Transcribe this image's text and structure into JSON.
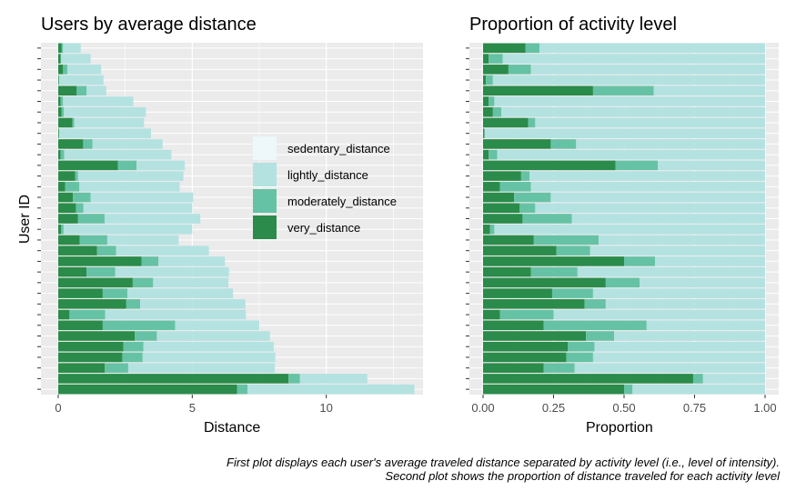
{
  "colors": {
    "sedentary_distance": "#eef7f9",
    "lightly_distance": "#b3e2e1",
    "moderately_distance": "#66c2a4",
    "very_distance": "#2a8b4a",
    "panel_bg": "#ebebeb",
    "grid": "#ffffff"
  },
  "legend": {
    "items": [
      "sedentary_distance",
      "lightly_distance",
      "moderately_distance",
      "very_distance"
    ]
  },
  "caption": {
    "line1": "First plot displays each user's average traveled distance separated by activity level (i.e., level of intensity).",
    "line2": "Second plot shows the proportion of distance traveled for each activity level"
  },
  "chart_data": [
    {
      "type": "bar",
      "orientation": "horizontal",
      "stacked": true,
      "title": "Users by average distance",
      "xlabel": "Distance",
      "ylabel": "User ID",
      "xlim": [
        0,
        13.5
      ],
      "xticks": [
        "0",
        "5",
        "10"
      ],
      "xtick_values": [
        0,
        5,
        10
      ],
      "series_order": [
        "very_distance",
        "moderately_distance",
        "lightly_distance",
        "sedentary_distance"
      ],
      "rows": [
        {
          "very": 0.13,
          "moderate": 0.05,
          "light": 0.66,
          "sedentary": 0.0
        },
        {
          "very": 0.09,
          "moderate": 0.02,
          "light": 1.1,
          "sedentary": 0.0
        },
        {
          "very": 0.18,
          "moderate": 0.16,
          "light": 1.26,
          "sedentary": 0.0
        },
        {
          "very": 0.02,
          "moderate": 0.02,
          "light": 1.65,
          "sedentary": 0.0
        },
        {
          "very": 0.69,
          "moderate": 0.37,
          "light": 0.73,
          "sedentary": 0.0
        },
        {
          "very": 0.09,
          "moderate": 0.09,
          "light": 2.62,
          "sedentary": 0.0
        },
        {
          "very": 0.12,
          "moderate": 0.09,
          "light": 3.06,
          "sedentary": 0.0
        },
        {
          "very": 0.53,
          "moderate": 0.07,
          "light": 2.6,
          "sedentary": 0.0
        },
        {
          "very": 0.03,
          "moderate": 0.0,
          "light": 3.43,
          "sedentary": 0.0
        },
        {
          "very": 0.93,
          "moderate": 0.35,
          "light": 2.61,
          "sedentary": 0.0
        },
        {
          "very": 0.09,
          "moderate": 0.13,
          "light": 4.0,
          "sedentary": 0.0
        },
        {
          "very": 2.23,
          "moderate": 0.69,
          "light": 1.8,
          "sedentary": 0.0
        },
        {
          "very": 0.63,
          "moderate": 0.11,
          "light": 3.93,
          "sedentary": 0.0
        },
        {
          "very": 0.26,
          "moderate": 0.53,
          "light": 3.74,
          "sedentary": 0.0
        },
        {
          "very": 0.55,
          "moderate": 0.66,
          "light": 3.82,
          "sedentary": 0.0
        },
        {
          "very": 0.66,
          "moderate": 0.28,
          "light": 4.06,
          "sedentary": 0.0
        },
        {
          "very": 0.74,
          "moderate": 0.99,
          "light": 3.57,
          "sedentary": 0.0
        },
        {
          "very": 0.11,
          "moderate": 0.09,
          "light": 4.8,
          "sedentary": 0.0
        },
        {
          "very": 0.8,
          "moderate": 1.03,
          "light": 2.66,
          "sedentary": 0.0
        },
        {
          "very": 1.45,
          "moderate": 0.71,
          "light": 3.46,
          "sedentary": 0.0
        },
        {
          "very": 3.11,
          "moderate": 0.63,
          "light": 2.48,
          "sedentary": 0.0
        },
        {
          "very": 1.06,
          "moderate": 1.07,
          "light": 4.24,
          "sedentary": 0.0
        },
        {
          "very": 2.78,
          "moderate": 0.76,
          "light": 2.81,
          "sedentary": 0.0
        },
        {
          "very": 1.66,
          "moderate": 0.92,
          "light": 3.94,
          "sedentary": 0.0
        },
        {
          "very": 2.54,
          "moderate": 0.52,
          "light": 3.92,
          "sedentary": 0.0
        },
        {
          "very": 0.42,
          "moderate": 1.33,
          "light": 5.25,
          "sedentary": 0.0
        },
        {
          "very": 1.66,
          "moderate": 2.7,
          "light": 3.14,
          "sedentary": 0.0
        },
        {
          "very": 2.86,
          "moderate": 0.82,
          "light": 4.22,
          "sedentary": 0.0
        },
        {
          "very": 2.43,
          "moderate": 0.75,
          "light": 4.86,
          "sedentary": 0.0
        },
        {
          "very": 2.39,
          "moderate": 0.76,
          "light": 4.95,
          "sedentary": 0.0
        },
        {
          "very": 1.74,
          "moderate": 0.87,
          "light": 5.47,
          "sedentary": 0.0
        },
        {
          "very": 8.59,
          "moderate": 0.43,
          "light": 2.51,
          "sedentary": 0.0
        },
        {
          "very": 6.67,
          "moderate": 0.39,
          "light": 6.23,
          "sedentary": 0.0
        }
      ]
    },
    {
      "type": "bar",
      "orientation": "horizontal",
      "stacked": true,
      "title": "Proportion of activity level",
      "xlabel": "Proportion",
      "ylabel": "",
      "xlim": [
        0,
        1
      ],
      "xticks": [
        "0.00",
        "0.25",
        "0.50",
        "0.75",
        "1.00"
      ],
      "xtick_values": [
        0,
        0.25,
        0.5,
        0.75,
        1.0
      ],
      "rows": [
        {
          "very": 0.15,
          "moderate": 0.05,
          "light": 0.8,
          "sedentary": 0.0
        },
        {
          "very": 0.02,
          "moderate": 0.05,
          "light": 0.93,
          "sedentary": 0.0
        },
        {
          "very": 0.09,
          "moderate": 0.08,
          "light": 0.83,
          "sedentary": 0.0
        },
        {
          "very": 0.01,
          "moderate": 0.025,
          "light": 0.965,
          "sedentary": 0.0
        },
        {
          "very": 0.39,
          "moderate": 0.215,
          "light": 0.395,
          "sedentary": 0.0
        },
        {
          "very": 0.02,
          "moderate": 0.02,
          "light": 0.96,
          "sedentary": 0.0
        },
        {
          "very": 0.035,
          "moderate": 0.03,
          "light": 0.935,
          "sedentary": 0.0
        },
        {
          "very": 0.16,
          "moderate": 0.025,
          "light": 0.815,
          "sedentary": 0.0
        },
        {
          "very": 0.005,
          "moderate": 0.0,
          "light": 0.995,
          "sedentary": 0.0
        },
        {
          "very": 0.24,
          "moderate": 0.09,
          "light": 0.67,
          "sedentary": 0.0
        },
        {
          "very": 0.02,
          "moderate": 0.03,
          "light": 0.95,
          "sedentary": 0.0
        },
        {
          "very": 0.47,
          "moderate": 0.15,
          "light": 0.38,
          "sedentary": 0.0
        },
        {
          "very": 0.135,
          "moderate": 0.03,
          "light": 0.835,
          "sedentary": 0.0
        },
        {
          "very": 0.06,
          "moderate": 0.11,
          "light": 0.83,
          "sedentary": 0.0
        },
        {
          "very": 0.11,
          "moderate": 0.13,
          "light": 0.76,
          "sedentary": 0.0
        },
        {
          "very": 0.13,
          "moderate": 0.055,
          "light": 0.815,
          "sedentary": 0.0
        },
        {
          "very": 0.14,
          "moderate": 0.175,
          "light": 0.685,
          "sedentary": 0.0
        },
        {
          "very": 0.025,
          "moderate": 0.015,
          "light": 0.96,
          "sedentary": 0.0
        },
        {
          "very": 0.18,
          "moderate": 0.23,
          "light": 0.59,
          "sedentary": 0.0
        },
        {
          "very": 0.26,
          "moderate": 0.12,
          "light": 0.62,
          "sedentary": 0.0
        },
        {
          "very": 0.5,
          "moderate": 0.11,
          "light": 0.39,
          "sedentary": 0.0
        },
        {
          "very": 0.17,
          "moderate": 0.165,
          "light": 0.665,
          "sedentary": 0.0
        },
        {
          "very": 0.435,
          "moderate": 0.12,
          "light": 0.445,
          "sedentary": 0.0
        },
        {
          "very": 0.245,
          "moderate": 0.145,
          "light": 0.61,
          "sedentary": 0.0
        },
        {
          "very": 0.36,
          "moderate": 0.075,
          "light": 0.565,
          "sedentary": 0.0
        },
        {
          "very": 0.06,
          "moderate": 0.19,
          "light": 0.75,
          "sedentary": 0.0
        },
        {
          "very": 0.215,
          "moderate": 0.365,
          "light": 0.42,
          "sedentary": 0.0
        },
        {
          "very": 0.365,
          "moderate": 0.1,
          "light": 0.535,
          "sedentary": 0.0
        },
        {
          "very": 0.3,
          "moderate": 0.095,
          "light": 0.605,
          "sedentary": 0.0
        },
        {
          "very": 0.295,
          "moderate": 0.095,
          "light": 0.61,
          "sedentary": 0.0
        },
        {
          "very": 0.215,
          "moderate": 0.11,
          "light": 0.675,
          "sedentary": 0.0
        },
        {
          "very": 0.745,
          "moderate": 0.035,
          "light": 0.22,
          "sedentary": 0.0
        },
        {
          "very": 0.5,
          "moderate": 0.03,
          "light": 0.47,
          "sedentary": 0.0
        }
      ]
    }
  ]
}
